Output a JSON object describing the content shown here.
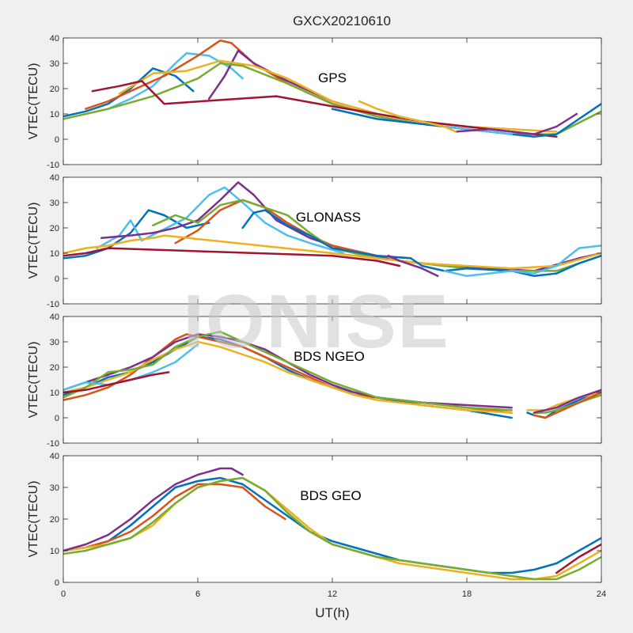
{
  "figure": {
    "title": "GXCX20210610",
    "xlabel": "UT(h)",
    "watermark": "IONISE"
  },
  "colors": {
    "background": "#f0f0f0",
    "axes": "#ffffff",
    "series": [
      "#0072BD",
      "#D95319",
      "#EDB120",
      "#7E2F8E",
      "#77AC30",
      "#4DBEEE",
      "#A2142F"
    ]
  },
  "chart_data": [
    {
      "type": "line",
      "name": "GPS",
      "ylabel": "VTEC(TECU)",
      "xlim": [
        0,
        24
      ],
      "ylim": [
        -10,
        40
      ],
      "xticks": [
        0,
        6,
        12,
        18,
        24
      ],
      "yticks": [
        -10,
        0,
        10,
        20,
        30,
        40
      ],
      "series": [
        {
          "color": "#0072BD",
          "x": [
            0,
            1,
            2,
            3,
            4,
            5,
            5.8
          ],
          "y": [
            9,
            11,
            14,
            20,
            28,
            25,
            19
          ]
        },
        {
          "color": "#4DBEEE",
          "x": [
            2,
            3,
            4,
            5,
            5.5,
            6.5,
            7.5,
            8
          ],
          "y": [
            12,
            16,
            21,
            30,
            34,
            33,
            28,
            24
          ]
        },
        {
          "color": "#D95319",
          "x": [
            1,
            2,
            3,
            4.5,
            6,
            7,
            7.5,
            8.5,
            10,
            12,
            14,
            16
          ],
          "y": [
            12,
            15,
            19,
            25,
            33,
            39,
            38,
            30,
            22,
            14,
            9,
            6
          ]
        },
        {
          "color": "#7E2F8E",
          "x": [
            6.5,
            7.2,
            7.8,
            8.5,
            10,
            12,
            14,
            16,
            18
          ],
          "y": [
            16,
            25,
            35,
            30,
            23,
            15,
            10,
            7,
            5
          ]
        },
        {
          "color": "#EDB120",
          "x": [
            2.5,
            4,
            5.5,
            7,
            8.5,
            10,
            12,
            14,
            16,
            18,
            20,
            22
          ],
          "y": [
            18,
            26,
            27,
            31,
            29,
            24,
            15,
            10,
            7,
            5,
            4,
            3
          ]
        },
        {
          "color": "#77AC30",
          "x": [
            0,
            2,
            4,
            6,
            7,
            8,
            10,
            12,
            14,
            16,
            18,
            20,
            22,
            24
          ],
          "y": [
            8,
            12,
            17,
            24,
            30,
            29,
            22,
            14,
            9,
            6,
            4,
            2,
            2,
            11
          ]
        },
        {
          "color": "#A2142F",
          "x": [
            1.3,
            2.5,
            3.5,
            4.5,
            9.5,
            12,
            14,
            16,
            18,
            20,
            22
          ],
          "y": [
            19,
            21,
            23,
            14,
            17,
            13,
            10,
            7,
            5,
            3,
            1
          ]
        },
        {
          "color": "#0072BD",
          "x": [
            12,
            14,
            16,
            17,
            18,
            19,
            20,
            21,
            22,
            23,
            24
          ],
          "y": [
            12,
            8,
            6,
            5,
            4,
            3,
            2,
            1,
            2,
            8,
            14
          ]
        },
        {
          "color": "#4DBEEE",
          "x": [
            15,
            16,
            17,
            18,
            19,
            20
          ],
          "y": [
            9,
            7,
            5,
            4,
            3,
            2
          ]
        },
        {
          "color": "#7E2F8E",
          "x": [
            17.5,
            19,
            20,
            21,
            22,
            22.9
          ],
          "y": [
            3,
            4,
            3,
            2,
            5,
            10
          ]
        },
        {
          "color": "#EDB120",
          "x": [
            13.2,
            14,
            15,
            16,
            17,
            17.5
          ],
          "y": [
            15,
            12,
            9,
            7,
            5,
            3
          ]
        }
      ]
    },
    {
      "type": "line",
      "name": "GLONASS",
      "ylabel": "VTEC(TECU)",
      "xlim": [
        0,
        24
      ],
      "ylim": [
        -10,
        40
      ],
      "xticks": [
        0,
        6,
        12,
        18,
        24
      ],
      "yticks": [
        -10,
        0,
        10,
        20,
        30,
        40
      ],
      "series": [
        {
          "color": "#0072BD",
          "x": [
            0,
            1,
            2,
            3,
            3.8,
            4.5,
            5.5,
            6.5
          ],
          "y": [
            8,
            9,
            12,
            18,
            27,
            25,
            20,
            22
          ]
        },
        {
          "color": "#4DBEEE",
          "x": [
            1.5,
            2.5,
            3,
            3.5,
            5.5,
            6.5,
            7.2,
            8,
            9,
            10,
            11,
            12.5
          ],
          "y": [
            12,
            17,
            23,
            15,
            24,
            33,
            36,
            30,
            22,
            17,
            14,
            10
          ]
        },
        {
          "color": "#7E2F8E",
          "x": [
            1.7,
            3,
            4,
            5,
            6,
            7,
            7.8,
            8.5,
            9.5,
            11,
            13,
            15,
            17,
            19,
            21,
            23,
            24
          ],
          "y": [
            16,
            17,
            18,
            20,
            23,
            31,
            38,
            33,
            23,
            16,
            10,
            7,
            5,
            4,
            3,
            8,
            10
          ]
        },
        {
          "color": "#D95319",
          "x": [
            5,
            6,
            7,
            8,
            9,
            10,
            11,
            12,
            14,
            15.5
          ],
          "y": [
            14,
            19,
            27,
            31,
            28,
            22,
            17,
            13,
            9,
            8
          ]
        },
        {
          "color": "#77AC30",
          "x": [
            4,
            5,
            6,
            7,
            8,
            9,
            10,
            11,
            12,
            14,
            16,
            18,
            20,
            22,
            24
          ],
          "y": [
            21,
            25,
            22,
            29,
            31,
            28,
            25,
            18,
            12,
            8,
            6,
            4,
            3,
            3,
            9
          ]
        },
        {
          "color": "#EDB120",
          "x": [
            0,
            1,
            2,
            3,
            4,
            4.5,
            12,
            14,
            16,
            18,
            20,
            22,
            24
          ],
          "y": [
            10,
            12,
            13,
            15,
            16,
            17,
            10,
            8,
            6,
            5,
            4,
            5,
            10
          ]
        },
        {
          "color": "#A2142F",
          "x": [
            0,
            1,
            2,
            12,
            14,
            15
          ],
          "y": [
            9,
            10,
            12,
            9,
            7,
            5
          ]
        },
        {
          "color": "#0072BD",
          "x": [
            8,
            8.5,
            9,
            10,
            11,
            12,
            14,
            15.5,
            16,
            17,
            18,
            20,
            21,
            22,
            23,
            24
          ],
          "y": [
            20,
            26,
            27,
            21,
            17,
            12,
            9,
            8,
            5,
            3,
            4,
            3,
            1,
            2,
            6,
            9
          ]
        },
        {
          "color": "#4DBEEE",
          "x": [
            17,
            18,
            19,
            20,
            21,
            22,
            23,
            24
          ],
          "y": [
            3,
            1,
            2,
            3,
            2,
            5,
            12,
            13
          ]
        },
        {
          "color": "#7E2F8E",
          "x": [
            14.5,
            15,
            16,
            16.7
          ],
          "y": [
            9,
            7,
            4,
            1
          ]
        }
      ]
    },
    {
      "type": "line",
      "name": "BDS NGEO",
      "ylabel": "VTEC(TECU)",
      "xlim": [
        0,
        24
      ],
      "ylim": [
        -10,
        40
      ],
      "xticks": [
        0,
        6,
        12,
        18,
        24
      ],
      "yticks": [
        -10,
        0,
        10,
        20,
        30,
        40
      ],
      "series": [
        {
          "color": "#0072BD",
          "x": [
            0,
            1,
            2,
            3,
            4,
            5,
            6,
            7,
            8,
            9,
            10,
            11,
            12,
            13,
            14,
            16,
            18,
            20
          ],
          "y": [
            9,
            12,
            16,
            18,
            22,
            27,
            32,
            31,
            28,
            24,
            19,
            15,
            12,
            10,
            8,
            5,
            3,
            0
          ]
        },
        {
          "color": "#D95319",
          "x": [
            0,
            1,
            2,
            3,
            4,
            5,
            5.5,
            6,
            7,
            8,
            9,
            10,
            11,
            12,
            13,
            14,
            16,
            18,
            20
          ],
          "y": [
            7,
            9,
            12,
            17,
            24,
            31,
            33,
            32,
            30,
            28,
            24,
            20,
            16,
            12,
            9,
            8,
            6,
            4,
            2
          ]
        },
        {
          "color": "#EDB120",
          "x": [
            0,
            1,
            2,
            3,
            4,
            5,
            6,
            7,
            8,
            9,
            10,
            11,
            12,
            13,
            14,
            16,
            18,
            20
          ],
          "y": [
            10,
            12,
            15,
            18,
            23,
            27,
            30,
            28,
            25,
            22,
            18,
            15,
            12,
            9,
            7,
            5,
            3,
            2
          ]
        },
        {
          "color": "#7E2F8E",
          "x": [
            0,
            1,
            2,
            3,
            4,
            5,
            6,
            7,
            8,
            9,
            10,
            11,
            12,
            13,
            14,
            16,
            18,
            20
          ],
          "y": [
            11,
            14,
            17,
            20,
            24,
            30,
            33,
            32,
            30,
            27,
            22,
            17,
            13,
            10,
            8,
            6,
            5,
            4
          ]
        },
        {
          "color": "#77AC30",
          "x": [
            0,
            1,
            2,
            3,
            4,
            5,
            6,
            7,
            8,
            9,
            10,
            11,
            12,
            13,
            14,
            16,
            18,
            20
          ],
          "y": [
            8,
            12,
            18,
            19,
            21,
            28,
            32,
            34,
            30,
            26,
            22,
            18,
            14,
            11,
            8,
            6,
            4,
            3
          ]
        },
        {
          "color": "#4DBEEE",
          "x": [
            0,
            1,
            2,
            3,
            4,
            5,
            6
          ],
          "y": [
            11,
            14,
            13,
            15,
            18,
            22,
            29
          ]
        },
        {
          "color": "#A2142F",
          "x": [
            0,
            1,
            2,
            3,
            4,
            4.7
          ],
          "y": [
            10,
            11,
            13,
            15,
            17,
            18
          ]
        },
        {
          "color": "#0072BD",
          "x": [
            20.7,
            21,
            21.5,
            22,
            23,
            24
          ],
          "y": [
            2,
            1,
            0,
            3,
            7,
            11
          ]
        },
        {
          "color": "#EDB120",
          "x": [
            20.7,
            21.5,
            22,
            23,
            24
          ],
          "y": [
            3,
            3,
            5,
            8,
            10
          ]
        },
        {
          "color": "#77AC30",
          "x": [
            21,
            21.5,
            22,
            23,
            24
          ],
          "y": [
            2,
            2,
            3,
            6,
            9
          ]
        },
        {
          "color": "#D95319",
          "x": [
            21,
            21.5,
            22,
            23,
            24
          ],
          "y": [
            1,
            0,
            2,
            6,
            10
          ]
        },
        {
          "color": "#7E2F8E",
          "x": [
            21,
            22,
            23,
            24
          ],
          "y": [
            2,
            4,
            8,
            11
          ]
        }
      ]
    },
    {
      "type": "line",
      "name": "BDS GEO",
      "ylabel": "VTEC(TECU)",
      "xlim": [
        0,
        24
      ],
      "ylim": [
        0,
        40
      ],
      "xticks": [
        0,
        6,
        12,
        18,
        24
      ],
      "yticks": [
        0,
        10,
        20,
        30,
        40
      ],
      "series": [
        {
          "color": "#0072BD",
          "x": [
            0,
            1,
            2,
            3,
            4,
            5,
            6,
            7,
            8,
            9,
            10,
            11,
            12,
            13,
            14,
            15,
            16,
            17,
            18,
            19,
            20,
            21,
            22,
            23,
            24
          ],
          "y": [
            10,
            11,
            13,
            18,
            24,
            30,
            32,
            33,
            31,
            26,
            21,
            16,
            13,
            11,
            9,
            7,
            6,
            5,
            4,
            3,
            3,
            4,
            6,
            10,
            14
          ]
        },
        {
          "color": "#D95319",
          "x": [
            0,
            1,
            2,
            3,
            4,
            5,
            6,
            7,
            8,
            9,
            9.9
          ],
          "y": [
            10,
            11,
            13,
            16,
            21,
            27,
            31,
            31,
            30,
            24,
            20
          ]
        },
        {
          "color": "#EDB120",
          "x": [
            0,
            1,
            2,
            3,
            4,
            5,
            6,
            7,
            8,
            9,
            10,
            11,
            12,
            13,
            14,
            15,
            16,
            17,
            18,
            19,
            20,
            21,
            22,
            23,
            24
          ],
          "y": [
            10,
            11,
            12,
            14,
            18,
            25,
            30,
            32,
            33,
            29,
            23,
            17,
            12,
            10,
            8,
            6,
            5,
            4,
            3,
            2,
            1,
            1,
            2,
            6,
            10
          ]
        },
        {
          "color": "#7E2F8E",
          "x": [
            0,
            1,
            2,
            3,
            4,
            5,
            6,
            7,
            7.5,
            8
          ],
          "y": [
            10,
            12,
            15,
            20,
            26,
            31,
            34,
            36,
            36,
            34
          ]
        },
        {
          "color": "#77AC30",
          "x": [
            0,
            1,
            2,
            3,
            4,
            5,
            6,
            7,
            8,
            9,
            10,
            11,
            12,
            13,
            14,
            15,
            16,
            17,
            18,
            19,
            20,
            21,
            22,
            23,
            24
          ],
          "y": [
            9,
            10,
            12,
            14,
            19,
            25,
            30,
            32,
            33,
            29,
            22,
            16,
            12,
            10,
            8,
            7,
            6,
            5,
            4,
            3,
            2,
            1,
            1,
            4,
            8
          ]
        },
        {
          "color": "#A2142F",
          "x": [
            22,
            23,
            24
          ],
          "y": [
            3,
            8,
            12
          ]
        }
      ]
    }
  ]
}
